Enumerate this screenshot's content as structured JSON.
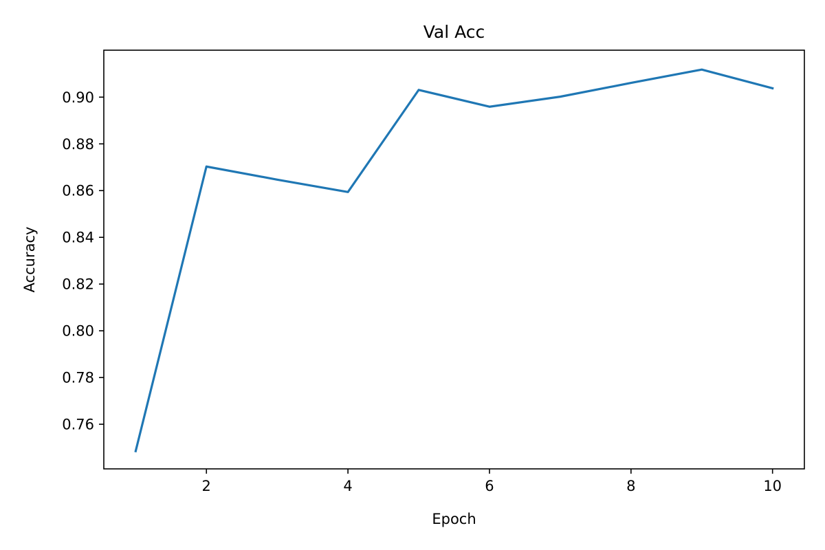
{
  "chart_data": {
    "type": "line",
    "title": "Val Acc",
    "xlabel": "Epoch",
    "ylabel": "Accuracy",
    "x": [
      1,
      2,
      3,
      4,
      5,
      6,
      7,
      8,
      9,
      10
    ],
    "series": [
      {
        "values": [
          0.7485,
          0.8703,
          0.8647,
          0.8594,
          0.9031,
          0.8959,
          0.9002,
          0.9061,
          0.9118,
          0.9038
        ],
        "color": "#1f77b4"
      }
    ],
    "xlim": [
      0.55,
      10.45
    ],
    "ylim": [
      0.7409,
      0.9201
    ],
    "xticks": [
      2,
      4,
      6,
      8,
      10
    ],
    "xtick_labels": [
      "2",
      "4",
      "6",
      "8",
      "10"
    ],
    "yticks": [
      0.76,
      0.78,
      0.8,
      0.82,
      0.84,
      0.86,
      0.88,
      0.9
    ],
    "ytick_labels": [
      "0.76",
      "0.78",
      "0.80",
      "0.82",
      "0.84",
      "0.86",
      "0.88",
      "0.90"
    ],
    "grid": false,
    "legend": "none"
  }
}
